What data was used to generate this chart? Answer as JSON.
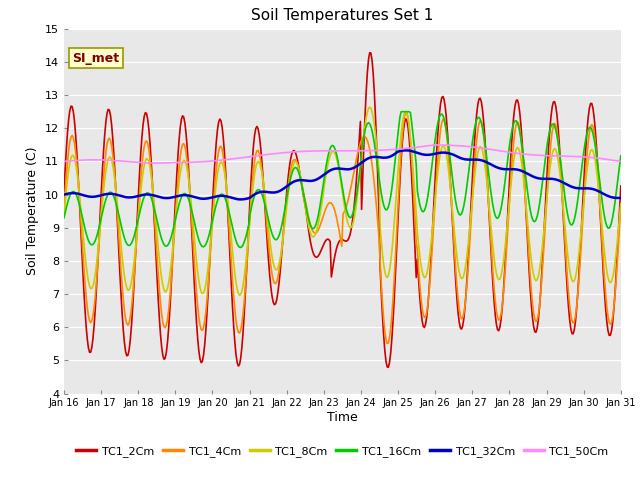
{
  "title": "Soil Temperatures Set 1",
  "xlabel": "Time",
  "ylabel": "Soil Temperature (C)",
  "ylim": [
    4.0,
    15.0
  ],
  "yticks": [
    4.0,
    5.0,
    6.0,
    7.0,
    8.0,
    9.0,
    10.0,
    11.0,
    12.0,
    13.0,
    14.0,
    15.0
  ],
  "xtick_labels": [
    "Jan 16",
    "Jan 17",
    "Jan 18",
    "Jan 19",
    "Jan 20",
    "Jan 21",
    "Jan 22",
    "Jan 23",
    "Jan 24",
    "Jan 25",
    "Jan 26",
    "Jan 27",
    "Jan 28",
    "Jan 29",
    "Jan 30",
    "Jan 31"
  ],
  "annotation_text": "SI_met",
  "series_colors": {
    "TC1_2Cm": "#cc0000",
    "TC1_4Cm": "#ff8800",
    "TC1_8Cm": "#cccc00",
    "TC1_16Cm": "#00cc00",
    "TC1_32Cm": "#0000cc",
    "TC1_50Cm": "#ff88ff"
  },
  "plot_bg_color": "#e8e8e8",
  "grid_color": "#ffffff",
  "n_points": 480
}
